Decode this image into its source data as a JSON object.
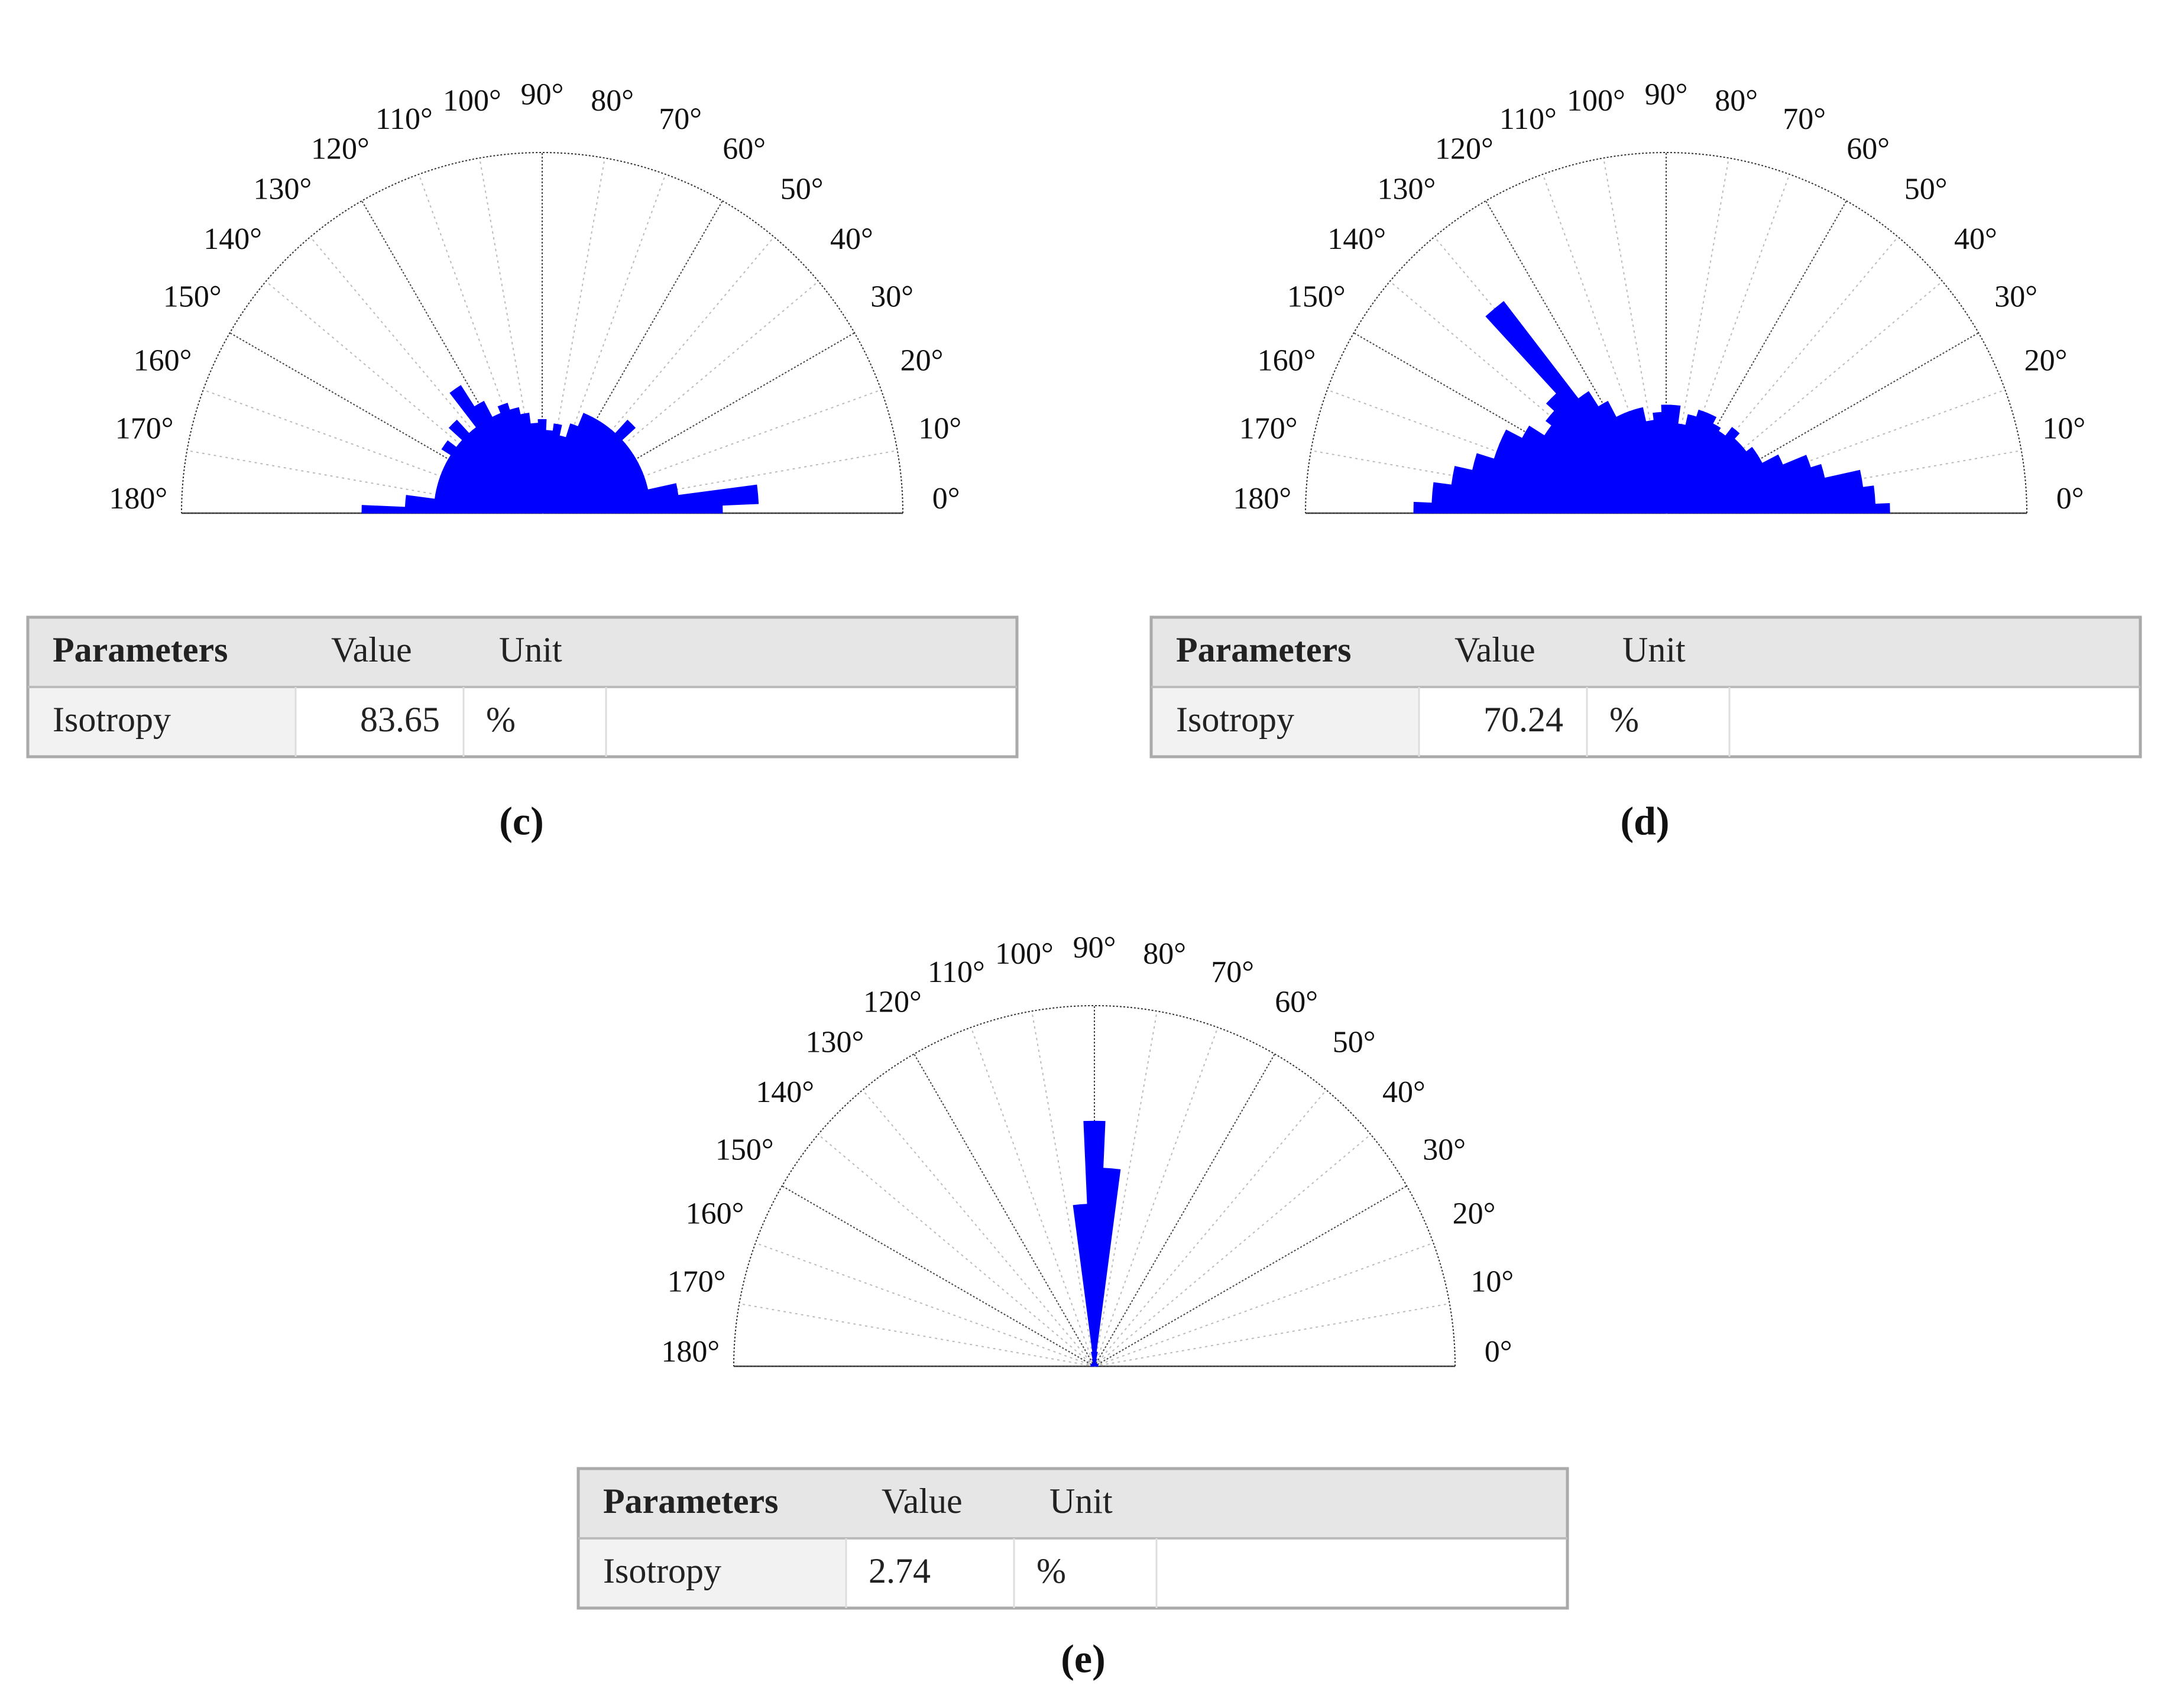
{
  "chart_data": [
    {
      "type": "polar-rose",
      "color": "#0000ff",
      "thetalim": [
        0,
        180
      ],
      "rlim": [
        0,
        1
      ],
      "thetaticks": [
        {
          "value": 0,
          "label": "0°"
        },
        {
          "value": 10,
          "label": "10°"
        },
        {
          "value": 20,
          "label": "20°"
        },
        {
          "value": 30,
          "label": "30°"
        },
        {
          "value": 40,
          "label": "40°"
        },
        {
          "value": 50,
          "label": "50°"
        },
        {
          "value": 60,
          "label": "60°"
        },
        {
          "value": 70,
          "label": "70°"
        },
        {
          "value": 80,
          "label": "80°"
        },
        {
          "value": 90,
          "label": "90°"
        },
        {
          "value": 100,
          "label": "100°"
        },
        {
          "value": 110,
          "label": "110°"
        },
        {
          "value": 120,
          "label": "120°"
        },
        {
          "value": 130,
          "label": "130°"
        },
        {
          "value": 140,
          "label": "140°"
        },
        {
          "value": 150,
          "label": "150°"
        },
        {
          "value": 160,
          "label": "160°"
        },
        {
          "value": 170,
          "label": "170°"
        },
        {
          "value": 180,
          "label": "180°"
        }
      ],
      "grid": true,
      "theta": [
        0,
        5,
        10,
        15,
        20,
        25,
        30,
        35,
        40,
        45,
        50,
        55,
        60,
        65,
        70,
        75,
        80,
        85,
        90,
        95,
        100,
        105,
        110,
        115,
        120,
        125,
        130,
        135,
        140,
        145,
        150,
        155,
        160,
        165,
        170,
        175,
        180
      ],
      "values": [
        0.5,
        0.6,
        0.38,
        0.3,
        0.3,
        0.3,
        0.3,
        0.3,
        0.3,
        0.35,
        0.3,
        0.3,
        0.3,
        0.3,
        0.26,
        0.22,
        0.25,
        0.23,
        0.26,
        0.25,
        0.28,
        0.3,
        0.32,
        0.3,
        0.35,
        0.42,
        0.3,
        0.35,
        0.3,
        0.33,
        0.3,
        0.3,
        0.3,
        0.3,
        0.3,
        0.38,
        0.5
      ]
    },
    {
      "type": "polar-rose",
      "color": "#0000ff",
      "thetalim": [
        0,
        180
      ],
      "rlim": [
        0,
        1
      ],
      "thetaticks": [
        {
          "value": 0,
          "label": "0°"
        },
        {
          "value": 10,
          "label": "10°"
        },
        {
          "value": 20,
          "label": "20°"
        },
        {
          "value": 30,
          "label": "30°"
        },
        {
          "value": 40,
          "label": "40°"
        },
        {
          "value": 50,
          "label": "50°"
        },
        {
          "value": 60,
          "label": "60°"
        },
        {
          "value": 70,
          "label": "70°"
        },
        {
          "value": 80,
          "label": "80°"
        },
        {
          "value": 90,
          "label": "90°"
        },
        {
          "value": 100,
          "label": "100°"
        },
        {
          "value": 110,
          "label": "110°"
        },
        {
          "value": 120,
          "label": "120°"
        },
        {
          "value": 130,
          "label": "130°"
        },
        {
          "value": 140,
          "label": "140°"
        },
        {
          "value": 150,
          "label": "150°"
        },
        {
          "value": 160,
          "label": "160°"
        },
        {
          "value": 170,
          "label": "170°"
        },
        {
          "value": 180,
          "label": "180°"
        }
      ],
      "grid": true,
      "theta": [
        0,
        5,
        10,
        15,
        20,
        25,
        30,
        35,
        40,
        45,
        50,
        55,
        60,
        65,
        70,
        75,
        80,
        85,
        90,
        95,
        100,
        105,
        110,
        115,
        120,
        125,
        130,
        135,
        140,
        145,
        150,
        155,
        160,
        165,
        170,
        175,
        180
      ],
      "values": [
        0.62,
        0.58,
        0.55,
        0.45,
        0.42,
        0.35,
        0.3,
        0.3,
        0.28,
        0.28,
        0.3,
        0.27,
        0.28,
        0.3,
        0.3,
        0.28,
        0.25,
        0.3,
        0.3,
        0.28,
        0.26,
        0.3,
        0.3,
        0.3,
        0.35,
        0.4,
        0.74,
        0.45,
        0.42,
        0.4,
        0.45,
        0.5,
        0.5,
        0.55,
        0.6,
        0.65,
        0.7
      ]
    },
    {
      "type": "polar-rose",
      "color": "#0000ff",
      "thetalim": [
        0,
        180
      ],
      "rlim": [
        0,
        1
      ],
      "thetaticks": [
        {
          "value": 0,
          "label": "0°"
        },
        {
          "value": 10,
          "label": "10°"
        },
        {
          "value": 20,
          "label": "20°"
        },
        {
          "value": 30,
          "label": "30°"
        },
        {
          "value": 40,
          "label": "40°"
        },
        {
          "value": 50,
          "label": "50°"
        },
        {
          "value": 60,
          "label": "60°"
        },
        {
          "value": 70,
          "label": "70°"
        },
        {
          "value": 80,
          "label": "80°"
        },
        {
          "value": 90,
          "label": "90°"
        },
        {
          "value": 100,
          "label": "100°"
        },
        {
          "value": 110,
          "label": "110°"
        },
        {
          "value": 120,
          "label": "120°"
        },
        {
          "value": 130,
          "label": "130°"
        },
        {
          "value": 140,
          "label": "140°"
        },
        {
          "value": 150,
          "label": "150°"
        },
        {
          "value": 160,
          "label": "160°"
        },
        {
          "value": 170,
          "label": "170°"
        },
        {
          "value": 180,
          "label": "180°"
        }
      ],
      "grid": true,
      "theta": [
        0,
        5,
        10,
        15,
        20,
        25,
        30,
        35,
        40,
        45,
        50,
        55,
        60,
        65,
        70,
        75,
        80,
        85,
        90,
        95,
        100,
        105,
        110,
        115,
        120,
        125,
        130,
        135,
        140,
        145,
        150,
        155,
        160,
        165,
        170,
        175,
        180
      ],
      "values": [
        0.01,
        0.01,
        0.01,
        0.01,
        0.01,
        0.01,
        0.01,
        0.01,
        0.01,
        0.01,
        0.01,
        0.01,
        0.01,
        0.01,
        0.01,
        0.02,
        0.04,
        0.55,
        0.68,
        0.45,
        0.04,
        0.02,
        0.01,
        0.01,
        0.01,
        0.01,
        0.01,
        0.01,
        0.01,
        0.01,
        0.01,
        0.01,
        0.01,
        0.01,
        0.01,
        0.01,
        0.01
      ]
    }
  ],
  "tables": [
    {
      "header": [
        "Parameters",
        "Value",
        "Unit"
      ],
      "rows": [
        [
          "Isotropy",
          83.65,
          "%"
        ]
      ]
    },
    {
      "header": [
        "Parameters",
        "Value",
        "Unit"
      ],
      "rows": [
        [
          "Isotropy",
          70.24,
          "%"
        ]
      ]
    },
    {
      "header": [
        "Parameters",
        "Value",
        "Unit"
      ],
      "rows": [
        [
          "Isotropy",
          2.74,
          "%"
        ]
      ]
    }
  ],
  "captions": [
    "(c)",
    "(d)",
    "(e)"
  ]
}
